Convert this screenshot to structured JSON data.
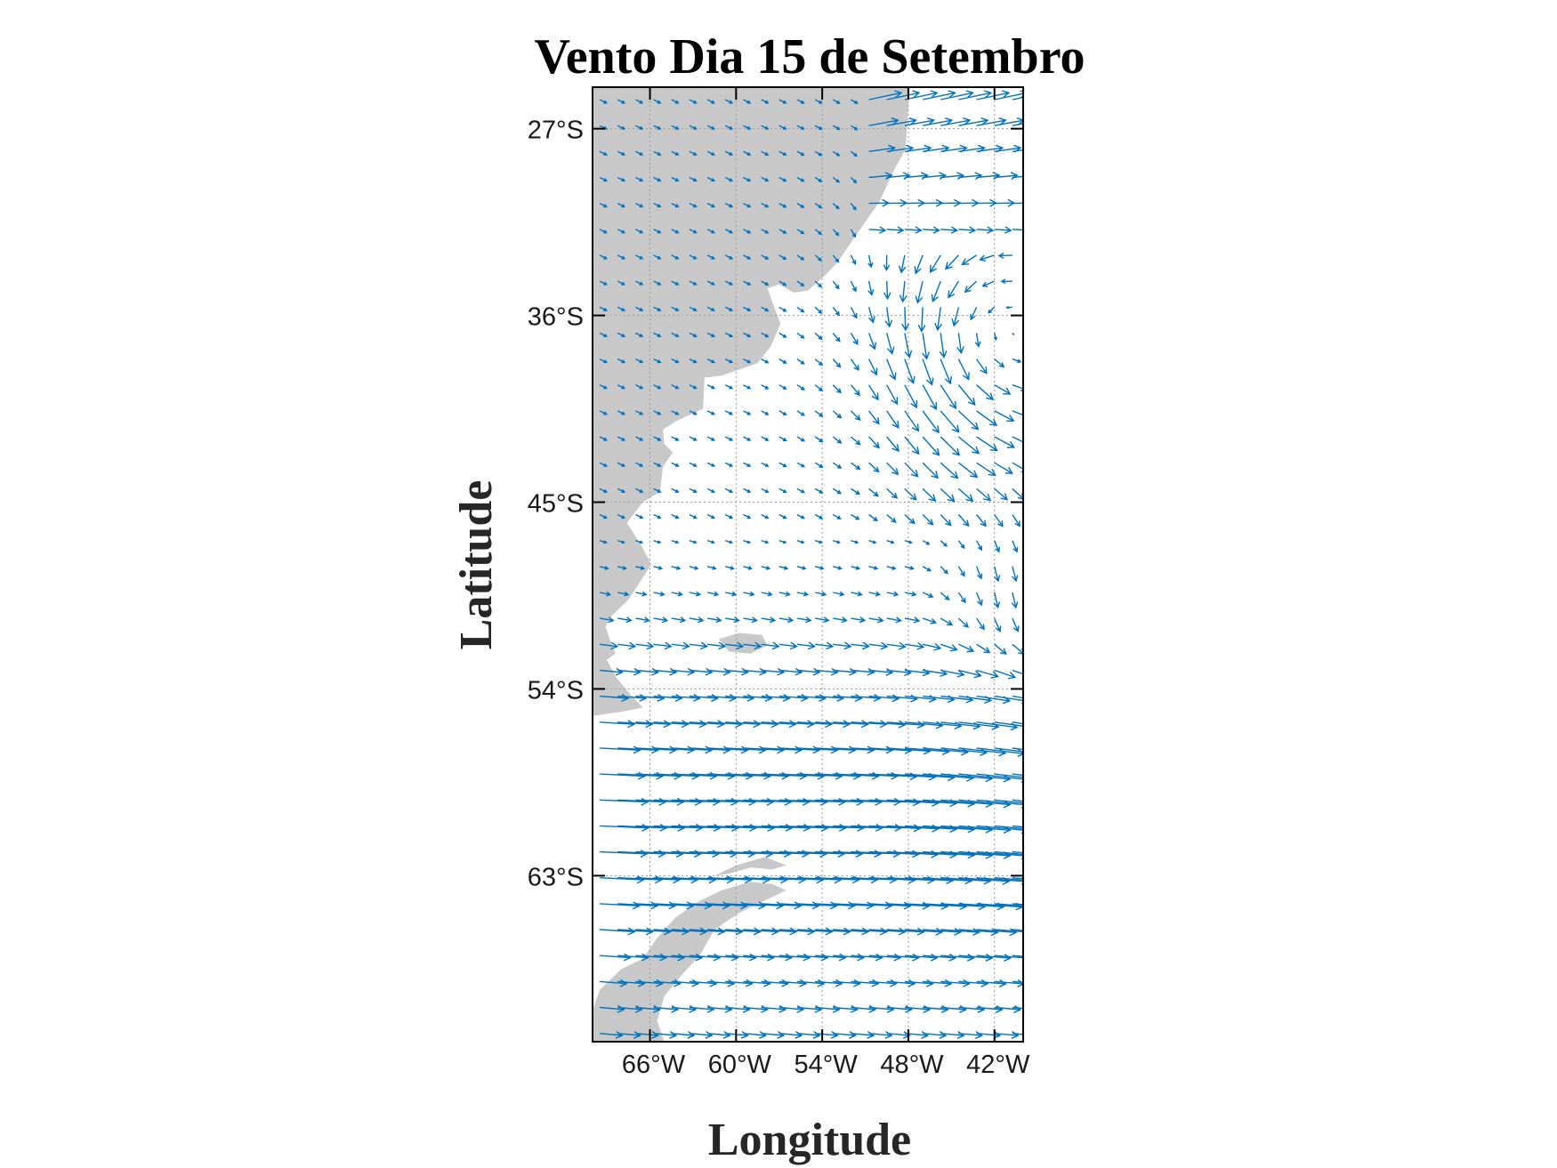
{
  "chart_data": {
    "type": "quiver",
    "title": "Vento Dia 15 de Setembro",
    "xlabel": "Longitude",
    "ylabel": "Latitude",
    "xlim": [
      -70,
      -40
    ],
    "ylim": [
      -71,
      -25
    ],
    "xticks": [
      {
        "value": -66,
        "label": "66°W"
      },
      {
        "value": -60,
        "label": "60°W"
      },
      {
        "value": -54,
        "label": "54°W"
      },
      {
        "value": -48,
        "label": "48°W"
      },
      {
        "value": -42,
        "label": "42°W"
      }
    ],
    "yticks": [
      {
        "value": -27,
        "label": "27°S"
      },
      {
        "value": -36,
        "label": "36°S"
      },
      {
        "value": -45,
        "label": "45°S"
      },
      {
        "value": -54,
        "label": "54°S"
      },
      {
        "value": -63,
        "label": "63°S"
      }
    ],
    "grid": true,
    "colors": {
      "arrow": "#0072BD",
      "land": "#C8C8C8",
      "grid": "#9a9a9a",
      "axis": "#000000"
    },
    "land": {
      "south_america": [
        [
          -70,
          -25
        ],
        [
          -48,
          -25
        ],
        [
          -48,
          -26
        ],
        [
          -48.2,
          -28
        ],
        [
          -49,
          -29
        ],
        [
          -50,
          -30.5
        ],
        [
          -51,
          -31.5
        ],
        [
          -52,
          -32.5
        ],
        [
          -53,
          -33.5
        ],
        [
          -54,
          -34.2
        ],
        [
          -55,
          -34.8
        ],
        [
          -56,
          -34.9
        ],
        [
          -57,
          -34.5
        ],
        [
          -57.8,
          -34.7
        ],
        [
          -57.4,
          -35.5
        ],
        [
          -56.9,
          -36.4
        ],
        [
          -57.6,
          -37.5
        ],
        [
          -58.5,
          -38.3
        ],
        [
          -61,
          -38.9
        ],
        [
          -62.2,
          -39
        ],
        [
          -62.3,
          -40.5
        ],
        [
          -64.2,
          -41.1
        ],
        [
          -65.1,
          -41.5
        ],
        [
          -65,
          -42.2
        ],
        [
          -64.4,
          -42.6
        ],
        [
          -65.1,
          -43.3
        ],
        [
          -65.3,
          -44.5
        ],
        [
          -66.5,
          -45
        ],
        [
          -67.6,
          -46
        ],
        [
          -66.6,
          -47.1
        ],
        [
          -65.9,
          -48
        ],
        [
          -67.5,
          -49.7
        ],
        [
          -68.7,
          -50.5
        ],
        [
          -69.1,
          -51
        ],
        [
          -68.8,
          -51.6
        ],
        [
          -68.4,
          -52.3
        ],
        [
          -69,
          -52.6
        ],
        [
          -68.4,
          -53.4
        ],
        [
          -67.2,
          -54.4
        ],
        [
          -66.5,
          -54.9
        ],
        [
          -68,
          -55.1
        ],
        [
          -70,
          -55.3
        ]
      ],
      "falklands": [
        [
          -61.2,
          -51.6
        ],
        [
          -59.8,
          -51.3
        ],
        [
          -58.2,
          -51.4
        ],
        [
          -57.8,
          -51.9
        ],
        [
          -59,
          -52.3
        ],
        [
          -60.5,
          -52.2
        ],
        [
          -61.2,
          -51.6
        ]
      ],
      "antarctic_peninsula": [
        [
          -70,
          -69.5
        ],
        [
          -69.5,
          -68.5
        ],
        [
          -68,
          -67.5
        ],
        [
          -66.5,
          -67
        ],
        [
          -65.5,
          -66
        ],
        [
          -64.2,
          -65
        ],
        [
          -62.5,
          -64.2
        ],
        [
          -61,
          -63.7
        ],
        [
          -59,
          -63.3
        ],
        [
          -57.5,
          -63.4
        ],
        [
          -56.5,
          -63.7
        ],
        [
          -58,
          -64.2
        ],
        [
          -59.8,
          -64.8
        ],
        [
          -61.5,
          -65.6
        ],
        [
          -62.5,
          -66.8
        ],
        [
          -63.8,
          -67.8
        ],
        [
          -65,
          -68.8
        ],
        [
          -65.5,
          -70
        ],
        [
          -65,
          -71
        ],
        [
          -70,
          -71
        ]
      ],
      "south_shetland": [
        [
          -58,
          -62.1
        ],
        [
          -56.5,
          -62.5
        ],
        [
          -57.5,
          -62.7
        ],
        [
          -59,
          -62.6
        ],
        [
          -60.5,
          -62.9
        ],
        [
          -61.5,
          -63
        ],
        [
          -60,
          -62.5
        ],
        [
          -58,
          -62.1
        ]
      ]
    },
    "wind_field": {
      "grid_spacing_deg": {
        "lon": 1.25,
        "lat": 1.25
      },
      "vectors": "short WSW/SW-ward arrows over the continent and Patagonian shelf; weak cyclonic swirl near 38°S 44°W; strong westerly to west-southwesterly flow south of 55°S, strongest 58–64°S, 40–52°W; turning southerly/southwesterly near 47–50°S 40–45°W; northeasterly-to-southerly curving arrows east of 50°W in 25–35°S"
    }
  }
}
